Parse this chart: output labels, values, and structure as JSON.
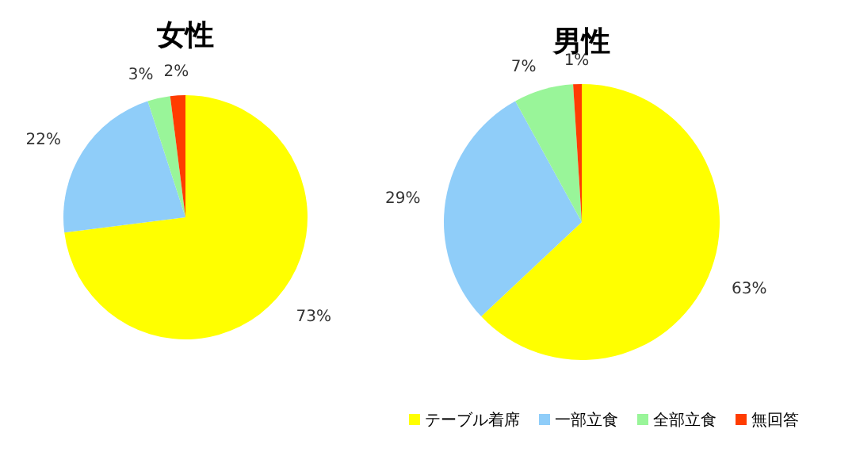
{
  "chart_data": [
    {
      "type": "pie",
      "title": "女性",
      "categories": [
        null,
        null,
        null,
        null
      ],
      "values": [
        73,
        22,
        3,
        2
      ],
      "colors": [
        "#ffff00",
        "#8fcdf9",
        "#99f599",
        "#ff3c00"
      ],
      "value_labels": [
        "73%",
        "22%",
        "3%",
        "2%"
      ]
    },
    {
      "type": "pie",
      "title": "男性",
      "categories": [
        "テーブル着席",
        "一部立食",
        "全部立食",
        "無回答"
      ],
      "values": [
        63,
        29,
        7,
        1
      ],
      "colors": [
        "#ffff00",
        "#8fcdf9",
        "#99f599",
        "#ff3c00"
      ],
      "value_labels": [
        "63%",
        "29%",
        "7%",
        "1%"
      ],
      "legend": "bottom"
    }
  ]
}
